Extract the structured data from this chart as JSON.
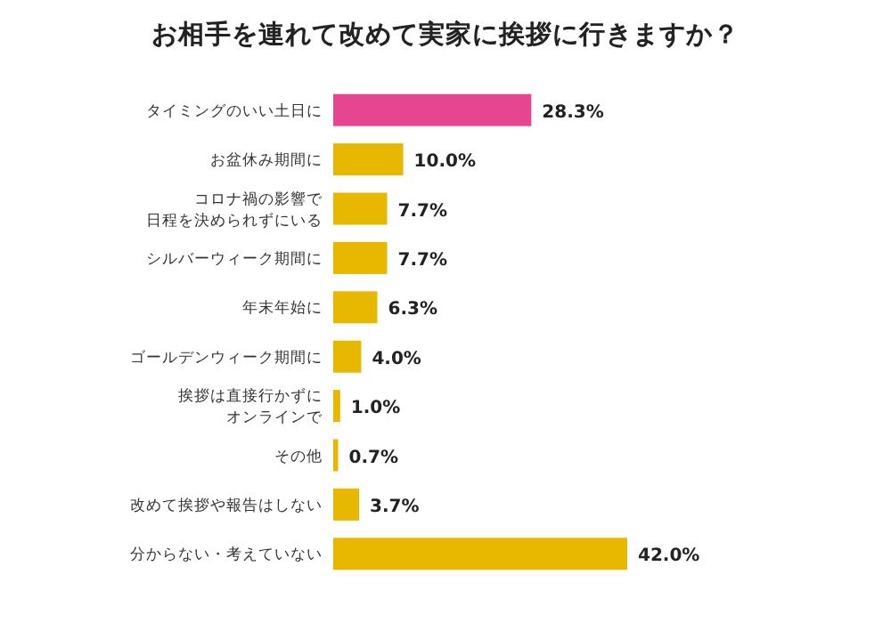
{
  "chart_data": {
    "type": "bar",
    "orientation": "horizontal",
    "title": "お相手を連れて改めて実家に挨拶に行きますか？",
    "categories": [
      "タイミングのいい土日に",
      "お盆休み期間に",
      "コロナ禍の影響で日程を決められずにいる",
      "シルバーウィーク期間に",
      "年末年始に",
      "ゴールデンウィーク期間に",
      "挨拶は直接行かずにオンラインで",
      "その他",
      "改めて挨拶や報告はしない",
      "分からない・考えていない"
    ],
    "values": [
      28.3,
      10.0,
      7.7,
      7.7,
      6.3,
      4.0,
      1.0,
      0.7,
      3.7,
      42.0
    ],
    "colors": [
      "#e5468f",
      "#e8b800",
      "#e8b800",
      "#e8b800",
      "#e8b800",
      "#e8b800",
      "#e8b800",
      "#e8b800",
      "#e8b800",
      "#e8b800"
    ],
    "value_labels": [
      "28.3%",
      "10.0%",
      "7.7%",
      "7.7%",
      "6.3%",
      "4.0%",
      "1.0%",
      "0.7%",
      "3.7%",
      "42.0%"
    ]
  }
}
